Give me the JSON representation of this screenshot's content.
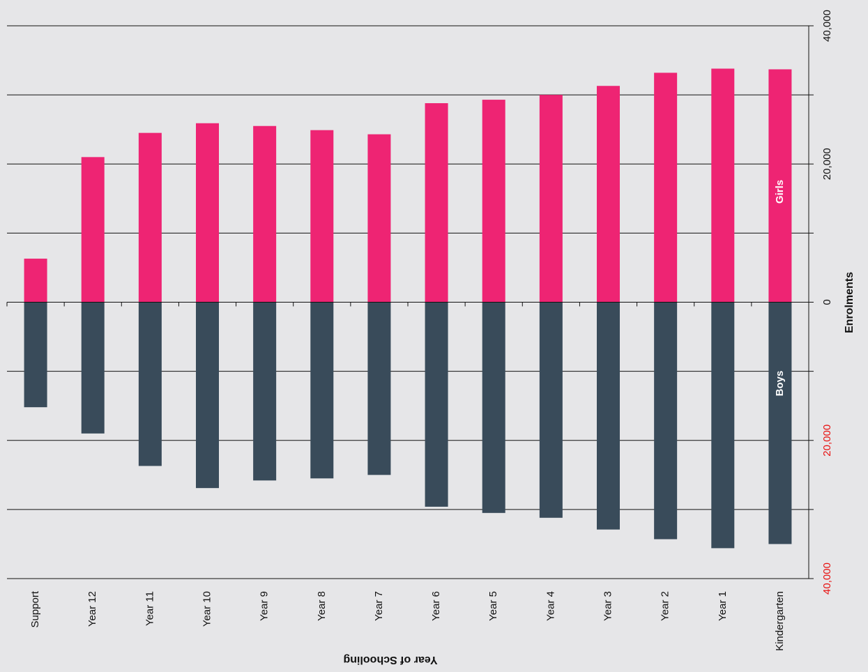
{
  "chart_data": {
    "type": "bar",
    "orientation": "rotated",
    "x_axis_label": "Year of Schooling",
    "y_axis_label": "Enrolments",
    "categories": [
      "Support",
      "Year 12",
      "Year 11",
      "Year 10",
      "Year 9",
      "Year 8",
      "Year 7",
      "Year 6",
      "Year 5",
      "Year 4",
      "Year 3",
      "Year 2",
      "Year 1",
      "Kindergarten"
    ],
    "series": [
      {
        "name": "Girls",
        "color": "#ee2473",
        "values": [
          6300,
          21000,
          24500,
          25900,
          25500,
          24900,
          24300,
          28800,
          29300,
          30000,
          31300,
          33200,
          33800,
          33700
        ]
      },
      {
        "name": "Boys",
        "color": "#394b5a",
        "values": [
          -15200,
          -19000,
          -23700,
          -26900,
          -25800,
          -25500,
          -25000,
          -29600,
          -30500,
          -31200,
          -32900,
          -34300,
          -35600,
          -35000
        ]
      }
    ],
    "ylim": [
      -40000,
      40000
    ],
    "yticks": [
      {
        "value": -40000,
        "label": "40,000"
      },
      {
        "value": -20000,
        "label": "20,000"
      },
      0,
      {
        "value": 20000,
        "label": "20,000"
      },
      {
        "value": 40000,
        "label": "40,000"
      }
    ],
    "minor_yticks": [
      -30000,
      -10000,
      10000,
      30000
    ],
    "negative_tick_color": "#e8100f",
    "grid": true
  }
}
